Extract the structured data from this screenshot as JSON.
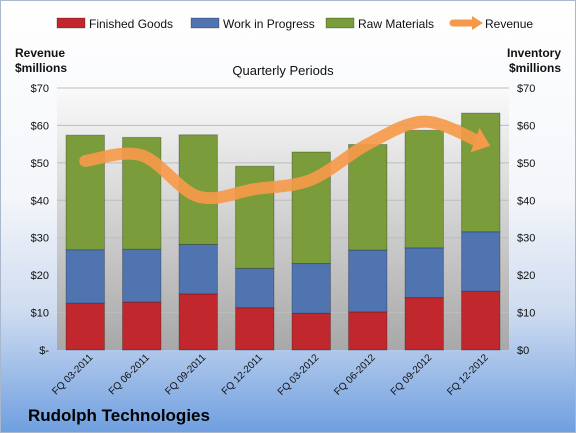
{
  "company": "Rudolph Technologies",
  "chart_data": {
    "type": "bar",
    "stacked": true,
    "title": "Quarterly Periods",
    "ylabel_left": "Revenue\n$millions",
    "ylabel_right": "Inventory\n$millions",
    "ylim": [
      0,
      70
    ],
    "yticks_left": [
      "$-",
      "$10",
      "$20",
      "$30",
      "$40",
      "$50",
      "$60",
      "$70"
    ],
    "yticks_right": [
      "$0",
      "$10",
      "$20",
      "$30",
      "$40",
      "$50",
      "$60",
      "$70"
    ],
    "legend_position": "top",
    "categories": [
      "FQ 03-2011",
      "FQ 06-2011",
      "FQ 09-2011",
      "FQ 12-2011",
      "FQ 03-2012",
      "FQ 06-2012",
      "FQ 09-2012",
      "FQ 12-2012"
    ],
    "series": [
      {
        "name": "Finished Goods",
        "kind": "bar",
        "color": "#c0282d",
        "values": [
          12.5,
          12.8,
          15.0,
          11.3,
          9.8,
          10.2,
          14.0,
          15.7
        ]
      },
      {
        "name": "Work in Progress",
        "kind": "bar",
        "color": "#4f74b0",
        "values": [
          14.3,
          14.1,
          13.2,
          10.5,
          13.3,
          16.5,
          13.3,
          15.9
        ]
      },
      {
        "name": "Raw Materials",
        "kind": "bar",
        "color": "#7a9c3a",
        "values": [
          30.6,
          29.9,
          29.3,
          27.3,
          29.8,
          28.2,
          31.4,
          31.7
        ]
      },
      {
        "name": "Revenue",
        "kind": "line",
        "color": "#f59a4a",
        "values": [
          50.5,
          52.0,
          41.0,
          43.0,
          45.5,
          55.0,
          61.0,
          55.5
        ]
      }
    ]
  }
}
